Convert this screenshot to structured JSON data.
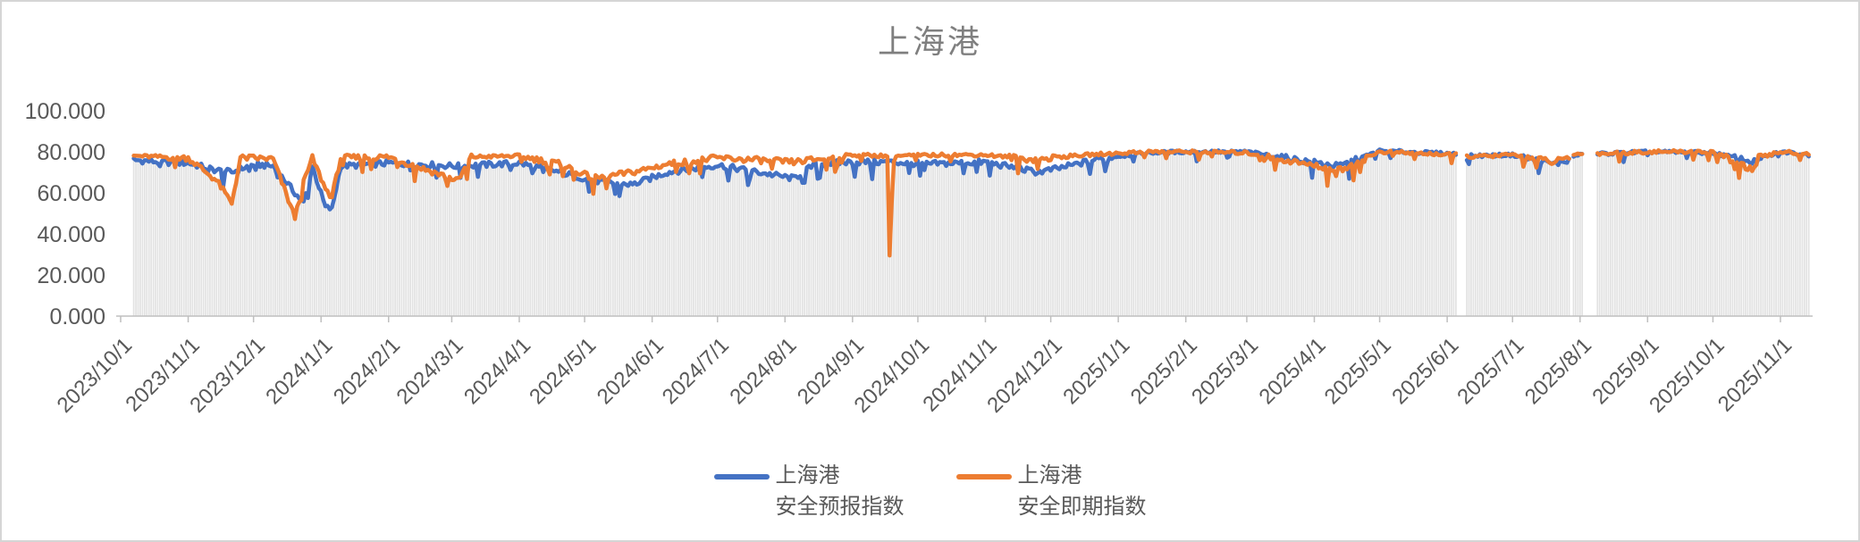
{
  "page": {
    "background": "#FFFFFF",
    "border_color": "#D5D5D5"
  },
  "chart_data": {
    "type": "line",
    "title": "上海港",
    "title_color": "#7F7F7F",
    "axis_text_color": "#595959",
    "axis_line_color": "#BFBFBF",
    "drop_line_color": "#E2E2E2",
    "grid": false,
    "legend_position": "bottom",
    "ylim": [
      0,
      100
    ],
    "y_tick_labels": [
      "0.000",
      "20.000",
      "40.000",
      "60.000",
      "80.000",
      "100.000"
    ],
    "x_axis_origin": "2023-10-01",
    "x_tick_labels": [
      "2023/10/1",
      "2023/11/1",
      "2023/12/1",
      "2024/1/1",
      "2024/2/1",
      "2024/3/1",
      "2024/4/1",
      "2024/5/1",
      "2024/6/1",
      "2024/7/1",
      "2024/8/1",
      "2024/9/1",
      "2024/10/1",
      "2024/11/1",
      "2024/12/1",
      "2025/1/1",
      "2025/2/1",
      "2025/3/1",
      "2025/4/1",
      "2025/5/1",
      "2025/6/1",
      "2025/7/1",
      "2025/8/1",
      "2025/9/1",
      "2025/10/1",
      "2025/11/1"
    ],
    "x_start": "2023-10-07",
    "x_end": "2025-11-14",
    "frequency": "daily",
    "gaps": [
      [
        "2025-06-06",
        "2025-06-09"
      ],
      [
        "2025-07-28",
        "2025-07-28"
      ],
      [
        "2025-08-03",
        "2025-08-08"
      ]
    ],
    "noise_amplitude": 1.5,
    "drop_lines": true,
    "series": [
      {
        "name": "上海港 安全预报指数",
        "legend_line1": "上海港",
        "legend_line2": "安全预报指数",
        "color": "#4472C4",
        "anchors": [
          [
            "2023-10-07",
            76
          ],
          [
            "2023-10-20",
            75
          ],
          [
            "2023-11-01",
            74.5
          ],
          [
            "2023-11-14",
            71
          ],
          [
            "2023-11-21",
            70
          ],
          [
            "2023-12-01",
            74
          ],
          [
            "2023-12-10",
            73
          ],
          [
            "2023-12-20",
            60
          ],
          [
            "2023-12-24",
            55
          ],
          [
            "2023-12-28",
            73
          ],
          [
            "2024-01-03",
            53
          ],
          [
            "2024-01-06",
            52
          ],
          [
            "2024-01-10",
            73
          ],
          [
            "2024-02-01",
            74.5
          ],
          [
            "2024-03-04",
            73
          ],
          [
            "2024-04-01",
            74.5
          ],
          [
            "2024-04-20",
            70
          ],
          [
            "2024-05-05",
            66
          ],
          [
            "2024-05-23",
            64
          ],
          [
            "2024-06-08",
            70
          ],
          [
            "2024-07-01",
            73.5
          ],
          [
            "2024-08-05",
            67
          ],
          [
            "2024-08-15",
            74
          ],
          [
            "2024-09-01",
            75
          ],
          [
            "2024-09-18",
            75
          ],
          [
            "2024-10-05",
            74
          ],
          [
            "2024-11-01",
            75
          ],
          [
            "2024-11-25",
            70
          ],
          [
            "2024-12-05",
            72
          ],
          [
            "2024-12-25",
            77
          ],
          [
            "2025-01-15",
            79.5
          ],
          [
            "2025-02-01",
            80
          ],
          [
            "2025-03-01",
            80
          ],
          [
            "2025-04-12",
            73
          ],
          [
            "2025-04-15",
            74
          ],
          [
            "2025-05-01",
            80.5
          ],
          [
            "2025-06-05",
            79
          ],
          [
            "2025-06-10",
            78
          ],
          [
            "2025-07-01",
            78.5
          ],
          [
            "2025-07-20",
            74
          ],
          [
            "2025-07-27",
            76
          ],
          [
            "2025-07-29",
            78
          ],
          [
            "2025-08-02",
            78.5
          ],
          [
            "2025-08-09",
            79
          ],
          [
            "2025-09-01",
            80
          ],
          [
            "2025-10-01",
            79.5
          ],
          [
            "2025-10-20",
            75
          ],
          [
            "2025-10-22",
            76
          ],
          [
            "2025-11-01",
            80
          ],
          [
            "2025-11-14",
            78.5
          ]
        ]
      },
      {
        "name": "上海港 安全即期指数",
        "legend_line1": "上海港",
        "legend_line2": "安全即期指数",
        "color": "#ED7D31",
        "anchors": [
          [
            "2023-10-07",
            78
          ],
          [
            "2023-10-20",
            77.5
          ],
          [
            "2023-11-01",
            77
          ],
          [
            "2023-11-14",
            66
          ],
          [
            "2023-11-21",
            55
          ],
          [
            "2023-11-25",
            77
          ],
          [
            "2023-12-01",
            77
          ],
          [
            "2023-12-10",
            76.5
          ],
          [
            "2023-12-20",
            48
          ],
          [
            "2023-12-24",
            65
          ],
          [
            "2023-12-28",
            77
          ],
          [
            "2024-01-03",
            62
          ],
          [
            "2024-01-06",
            58
          ],
          [
            "2024-01-10",
            77
          ],
          [
            "2024-02-01",
            77.5
          ],
          [
            "2024-03-04",
            66
          ],
          [
            "2024-03-10",
            77.5
          ],
          [
            "2024-04-01",
            78
          ],
          [
            "2024-04-20",
            74
          ],
          [
            "2024-05-05",
            67
          ],
          [
            "2024-05-23",
            70
          ],
          [
            "2024-06-08",
            74
          ],
          [
            "2024-07-01",
            77
          ],
          [
            "2024-08-05",
            75
          ],
          [
            "2024-09-01",
            78.5
          ],
          [
            "2024-09-17",
            78
          ],
          [
            "2024-09-18",
            30
          ],
          [
            "2024-09-20",
            78
          ],
          [
            "2024-10-15",
            78.5
          ],
          [
            "2024-11-01",
            78.5
          ],
          [
            "2024-11-25",
            76
          ],
          [
            "2024-12-05",
            77.5
          ],
          [
            "2024-12-25",
            79
          ],
          [
            "2025-01-15",
            80
          ],
          [
            "2025-02-01",
            80
          ],
          [
            "2025-03-01",
            79.5
          ],
          [
            "2025-04-12",
            71
          ],
          [
            "2025-04-15",
            72
          ],
          [
            "2025-05-01",
            80
          ],
          [
            "2025-06-05",
            78.5
          ],
          [
            "2025-06-10",
            77.5
          ],
          [
            "2025-07-01",
            78.5
          ],
          [
            "2025-07-20",
            75
          ],
          [
            "2025-07-27",
            77
          ],
          [
            "2025-07-29",
            78.5
          ],
          [
            "2025-08-02",
            79
          ],
          [
            "2025-08-09",
            79
          ],
          [
            "2025-09-01",
            80
          ],
          [
            "2025-10-01",
            80
          ],
          [
            "2025-10-20",
            71
          ],
          [
            "2025-10-22",
            77
          ],
          [
            "2025-11-01",
            80
          ],
          [
            "2025-11-14",
            79
          ]
        ]
      }
    ]
  }
}
